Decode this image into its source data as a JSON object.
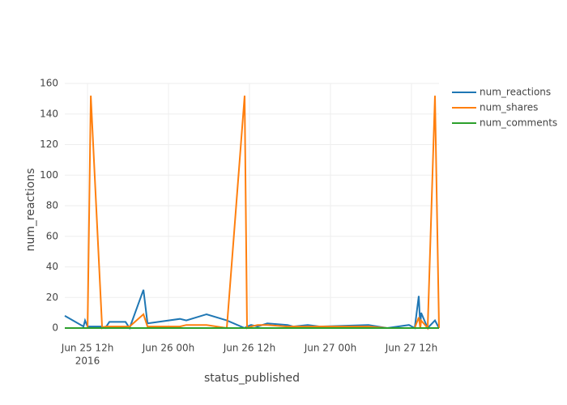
{
  "chart_data": {
    "type": "line",
    "x_label": "status_published",
    "y_label": "num_reactions",
    "x": [
      "2016-06-25 08:38",
      "2016-06-25 11:24",
      "2016-06-25 11:38",
      "2016-06-25 12:00",
      "2016-06-25 12:29",
      "2016-06-25 14:10",
      "2016-06-25 14:38",
      "2016-06-25 15:14",
      "2016-06-25 17:38",
      "2016-06-25 18:14",
      "2016-06-25 20:17",
      "2016-06-25 20:53",
      "2016-06-26 01:41",
      "2016-06-26 02:38",
      "2016-06-26 05:38",
      "2016-06-26 08:38",
      "2016-06-26 11:17",
      "2016-06-26 11:38",
      "2016-06-26 12:14",
      "2016-06-26 13:12",
      "2016-06-26 14:38",
      "2016-06-26 17:38",
      "2016-06-26 18:29",
      "2016-06-26 20:38",
      "2016-06-26 22:26",
      "2016-06-27 05:38",
      "2016-06-27 08:24",
      "2016-06-27 11:38",
      "2016-06-27 12:29",
      "2016-06-27 13:05",
      "2016-06-27 13:19",
      "2016-06-27 13:26",
      "2016-06-27 14:24",
      "2016-06-27 15:29",
      "2016-06-27 16:05"
    ],
    "series": [
      {
        "name": "num_reactions",
        "color": "#1f77b4",
        "values": [
          8,
          1,
          5,
          1,
          1,
          1,
          0,
          4,
          4,
          0,
          25,
          3,
          6,
          5,
          9,
          5,
          0,
          1,
          2,
          1,
          3,
          2,
          1,
          2,
          1,
          2,
          0,
          2,
          0,
          21,
          0,
          10,
          0,
          5,
          0
        ]
      },
      {
        "name": "num_shares",
        "color": "#ff7f0e",
        "values": [
          0,
          0,
          0,
          0,
          152,
          0,
          1,
          1,
          1,
          1,
          9,
          1,
          1,
          2,
          2,
          0,
          152,
          0,
          1,
          2,
          2,
          1,
          1,
          1,
          1,
          1,
          0,
          0,
          0,
          7,
          0,
          5,
          0,
          152,
          0
        ]
      },
      {
        "name": "num_comments",
        "color": "#2ca02c",
        "values": [
          0,
          0,
          0,
          0,
          0,
          0,
          0,
          0,
          0,
          0,
          0,
          0,
          0,
          0,
          0,
          0,
          0,
          0,
          0,
          0,
          0,
          0,
          0,
          0,
          0,
          0,
          0,
          0,
          0,
          0,
          0,
          0,
          0,
          0,
          0
        ]
      }
    ],
    "xlim": [
      "2016-06-25 08:38",
      "2016-06-27 16:05"
    ],
    "xticks": [
      {
        "value": "2016-06-25 12:00",
        "label": "Jun 25 12h"
      },
      {
        "value": "2016-06-26 00:00",
        "label": "Jun 26 00h"
      },
      {
        "value": "2016-06-26 12:00",
        "label": "Jun 26 12h"
      },
      {
        "value": "2016-06-27 00:00",
        "label": "Jun 27 00h"
      },
      {
        "value": "2016-06-27 12:00",
        "label": "Jun 27 12h"
      }
    ],
    "xtick_year": "2016",
    "ylim": [
      0,
      160
    ],
    "yticks": [
      0,
      20,
      40,
      60,
      80,
      100,
      120,
      140,
      160
    ],
    "grid": true,
    "legend": "right"
  }
}
